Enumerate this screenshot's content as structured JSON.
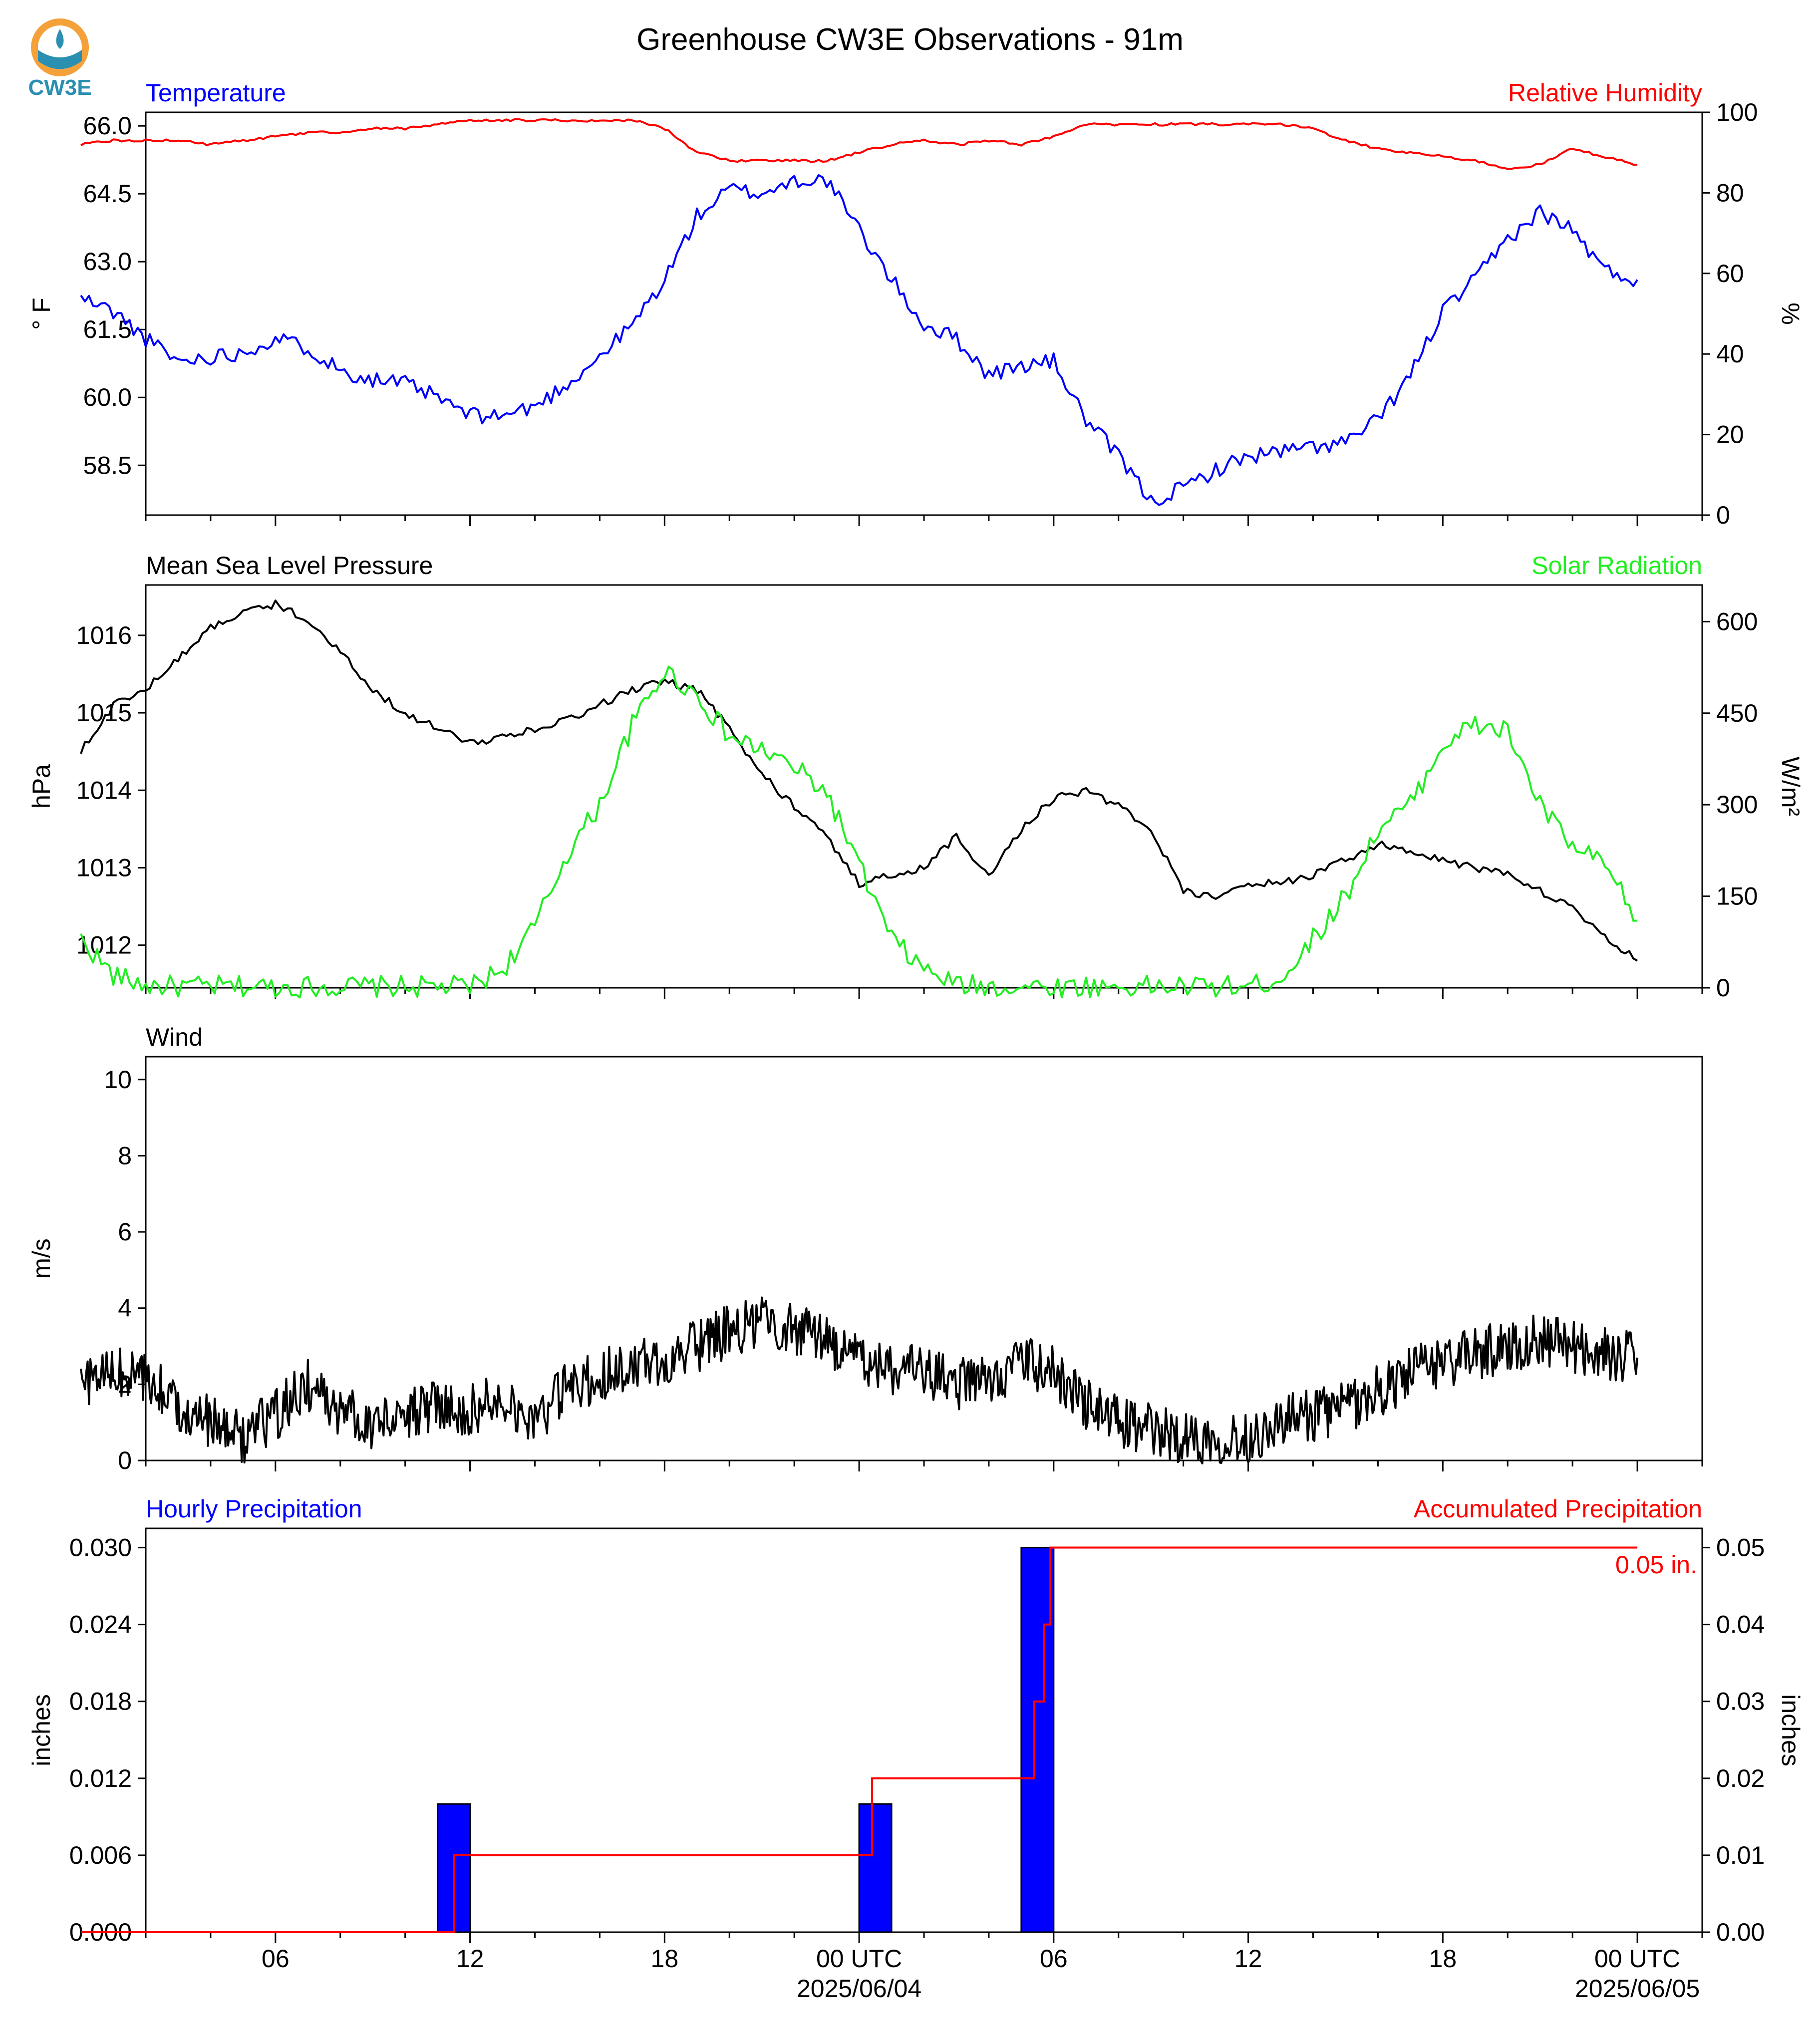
{
  "title": "Greenhouse CW3E Observations - 91m",
  "logo_text": "CW3E",
  "colors": {
    "blue": "#0000ff",
    "red": "#ff0000",
    "green": "#22ee22",
    "black": "#000000",
    "logo_orange": "#f4a13a",
    "logo_teal": "#2a8fb0"
  },
  "x_axis": {
    "ticks": [
      "06",
      "12",
      "18",
      "00 UTC",
      "06",
      "12",
      "18",
      "00 UTC"
    ],
    "dates": [
      "2025/06/04",
      "2025/06/05"
    ]
  },
  "chart_data": [
    {
      "type": "line",
      "title_left": "Temperature",
      "title_right": "Relative Humidity",
      "ylabel": "° F",
      "ylabel_right": "%",
      "ylim": [
        57.4,
        66.3
      ],
      "yticks": [
        "66.0",
        "64.5",
        "63.0",
        "61.5",
        "60.0",
        "58.5"
      ],
      "ylim_right": [
        0,
        100
      ],
      "yticks_right": [
        "100",
        "80",
        "60",
        "40",
        "20",
        "0"
      ],
      "x_hours": [
        0,
        1,
        2,
        3,
        4,
        5,
        6,
        7,
        8,
        9,
        10,
        11,
        12,
        13,
        14,
        15,
        16,
        17,
        18,
        19,
        20,
        21,
        22,
        23,
        24,
        25,
        26,
        27,
        28,
        29,
        30,
        31,
        32,
        33,
        34,
        35,
        36,
        37,
        38,
        39,
        40,
        41,
        42,
        43,
        44,
        45,
        46,
        47,
        48
      ],
      "series": [
        {
          "name": "Temperature",
          "axis": "left",
          "color": "#0000ff",
          "values": [
            62.2,
            61.9,
            61.3,
            60.8,
            60.9,
            61.0,
            61.3,
            61.1,
            60.6,
            60.4,
            60.3,
            60.0,
            59.6,
            59.6,
            59.8,
            60.3,
            60.9,
            61.6,
            62.6,
            64.0,
            64.6,
            64.5,
            64.8,
            64.8,
            63.7,
            62.6,
            61.6,
            61.3,
            60.5,
            60.7,
            60.8,
            59.5,
            58.7,
            57.7,
            58.0,
            58.4,
            58.7,
            58.8,
            58.9,
            59.0,
            59.5,
            60.5,
            61.9,
            62.6,
            63.5,
            64.1,
            63.7,
            62.8,
            62.6
          ]
        },
        {
          "name": "Relative Humidity",
          "axis": "right",
          "color": "#ff0000",
          "values": [
            92,
            93,
            93,
            93,
            92,
            93,
            94,
            95,
            95,
            96,
            96,
            97,
            98,
            98,
            98,
            98,
            98,
            98,
            96,
            90,
            88,
            88,
            88,
            88,
            90,
            92,
            93,
            92,
            93,
            92,
            94,
            97,
            97,
            97,
            97,
            97,
            97,
            97,
            96,
            93,
            91,
            90,
            89,
            88,
            86,
            87,
            91,
            89,
            87
          ]
        }
      ]
    },
    {
      "type": "line",
      "title_left": "Mean Sea Level Pressure",
      "title_right": "Solar Radiation",
      "ylabel": "hPa",
      "ylabel_right": "W/m²",
      "ylim": [
        1011.45,
        1016.65
      ],
      "yticks": [
        "1016",
        "1015",
        "1014",
        "1013",
        "1012"
      ],
      "ylim_right": [
        0,
        660
      ],
      "yticks_right": [
        "600",
        "450",
        "300",
        "150",
        "0"
      ],
      "x_hours": [
        0,
        1,
        2,
        3,
        4,
        5,
        6,
        7,
        8,
        9,
        10,
        11,
        12,
        13,
        14,
        15,
        16,
        17,
        18,
        19,
        20,
        21,
        22,
        23,
        24,
        25,
        26,
        27,
        28,
        29,
        30,
        31,
        32,
        33,
        34,
        35,
        36,
        37,
        38,
        39,
        40,
        41,
        42,
        43,
        44,
        45,
        46,
        47,
        48
      ],
      "series": [
        {
          "name": "Mean Sea Level Pressure",
          "axis": "left",
          "color": "#000000",
          "values": [
            1014.5,
            1015.1,
            1015.3,
            1015.7,
            1016.1,
            1016.3,
            1016.4,
            1016.2,
            1015.8,
            1015.3,
            1015.0,
            1014.8,
            1014.6,
            1014.7,
            1014.8,
            1014.9,
            1015.1,
            1015.3,
            1015.4,
            1015.3,
            1014.8,
            1014.2,
            1013.8,
            1013.4,
            1012.8,
            1012.9,
            1013.0,
            1013.4,
            1012.9,
            1013.5,
            1013.9,
            1014.0,
            1013.8,
            1013.5,
            1012.7,
            1012.6,
            1012.8,
            1012.8,
            1012.9,
            1013.1,
            1013.3,
            1013.2,
            1013.1,
            1013.0,
            1012.9,
            1012.7,
            1012.5,
            1012.1,
            1011.8
          ]
        },
        {
          "name": "Solar Radiation",
          "axis": "right",
          "color": "#22ee22",
          "values": [
            80,
            20,
            4,
            2,
            2,
            2,
            2,
            2,
            2,
            2,
            2,
            2,
            2,
            30,
            100,
            220,
            300,
            430,
            520,
            480,
            410,
            390,
            360,
            320,
            200,
            80,
            30,
            5,
            2,
            2,
            2,
            2,
            2,
            2,
            2,
            2,
            2,
            15,
            80,
            150,
            260,
            300,
            400,
            430,
            420,
            300,
            230,
            200,
            110
          ]
        }
      ]
    },
    {
      "type": "line",
      "title_left": "Wind",
      "ylabel": "m/s",
      "ylim": [
        0,
        10.6
      ],
      "yticks": [
        "10",
        "8",
        "6",
        "4",
        "2",
        "0"
      ],
      "x_hours": [
        0,
        1,
        2,
        3,
        4,
        5,
        6,
        7,
        8,
        9,
        10,
        11,
        12,
        13,
        14,
        15,
        16,
        17,
        18,
        19,
        20,
        21,
        22,
        23,
        24,
        25,
        26,
        27,
        28,
        29,
        30,
        31,
        32,
        33,
        34,
        35,
        36,
        37,
        38,
        39,
        40,
        41,
        42,
        43,
        44,
        45,
        46,
        47,
        48
      ],
      "series": [
        {
          "name": "Wind",
          "axis": "left",
          "color": "#000000",
          "values": [
            2.0,
            2.3,
            2.1,
            1.5,
            1.0,
            0.6,
            1.2,
            2.0,
            1.3,
            1.0,
            1.2,
            1.5,
            1.3,
            1.8,
            1.0,
            1.9,
            2.2,
            2.5,
            2.6,
            3.0,
            3.4,
            3.6,
            3.5,
            3.2,
            2.6,
            2.4,
            2.3,
            2.0,
            2.1,
            2.6,
            2.3,
            1.5,
            1.0,
            0.8,
            0.6,
            0.6,
            0.6,
            1.0,
            1.2,
            1.4,
            1.8,
            2.3,
            2.6,
            2.8,
            3.0,
            3.2,
            3.0,
            2.8,
            2.7
          ]
        }
      ]
    },
    {
      "type": "bar",
      "title_left": "Hourly Precipitation",
      "title_right": "Accumulated Precipitation",
      "ylabel": "inches",
      "ylabel_right": "inches",
      "ylim": [
        0,
        0.0315
      ],
      "yticks": [
        "0.030",
        "0.024",
        "0.018",
        "0.012",
        "0.006",
        "0.000"
      ],
      "ylim_right": [
        0,
        0.0525
      ],
      "yticks_right": [
        "0.05",
        "0.04",
        "0.03",
        "0.02",
        "0.01",
        "0.00"
      ],
      "bars": [
        {
          "hour": 11,
          "value": 0.01
        },
        {
          "hour": 24,
          "value": 0.01
        },
        {
          "hour": 29,
          "value": 0.03
        }
      ],
      "accumulated": [
        [
          0,
          0
        ],
        [
          11.5,
          0
        ],
        [
          11.5,
          0.01
        ],
        [
          24.4,
          0.01
        ],
        [
          24.4,
          0.02
        ],
        [
          29.4,
          0.02
        ],
        [
          29.4,
          0.03
        ],
        [
          29.7,
          0.03
        ],
        [
          29.7,
          0.04
        ],
        [
          29.9,
          0.04
        ],
        [
          29.9,
          0.05
        ],
        [
          48,
          0.05
        ]
      ],
      "total_label": "0.05 in."
    }
  ]
}
